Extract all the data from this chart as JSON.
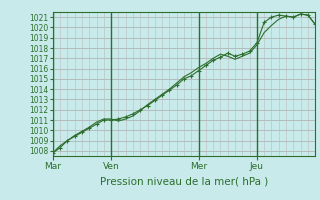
{
  "title": "",
  "xlabel": "Pression niveau de la mer( hPa )",
  "ylabel": "",
  "bg_color": "#c8eaea",
  "plot_bg_color": "#c8eaea",
  "line_color": "#2d6e2d",
  "grid_color": "#aaaaaa",
  "minor_grid_color": "#bbbbbb",
  "day_line_color": "#2d6e2d",
  "ylim": [
    1007.5,
    1021.5
  ],
  "yticks": [
    1008,
    1009,
    1010,
    1011,
    1012,
    1013,
    1014,
    1015,
    1016,
    1017,
    1018,
    1019,
    1020,
    1021
  ],
  "day_labels": [
    "Mar",
    "Ven",
    "Mer",
    "Jeu"
  ],
  "day_positions": [
    0,
    48,
    120,
    168
  ],
  "total_hours": 216,
  "line1_x": [
    0,
    6,
    12,
    18,
    24,
    30,
    36,
    42,
    48,
    54,
    60,
    66,
    72,
    78,
    84,
    90,
    96,
    102,
    108,
    114,
    120,
    126,
    132,
    138,
    144,
    150,
    156,
    162,
    168,
    174,
    180,
    186,
    192,
    198,
    204,
    210,
    216
  ],
  "line1_y": [
    1007.8,
    1008.3,
    1009.0,
    1009.4,
    1009.8,
    1010.2,
    1010.6,
    1011.0,
    1011.0,
    1011.1,
    1011.3,
    1011.6,
    1012.0,
    1012.4,
    1012.9,
    1013.4,
    1013.9,
    1014.4,
    1015.0,
    1015.3,
    1015.8,
    1016.3,
    1016.8,
    1017.1,
    1017.5,
    1017.2,
    1017.4,
    1017.7,
    1018.5,
    1020.5,
    1021.0,
    1021.2,
    1021.1,
    1021.0,
    1021.3,
    1021.2,
    1020.3
  ],
  "line2_x": [
    0,
    6,
    12,
    18,
    24,
    30,
    36,
    42,
    48,
    54,
    60,
    66,
    72,
    78,
    84,
    90,
    96,
    102,
    108,
    114,
    120,
    126,
    132,
    138,
    144,
    150,
    156,
    162,
    168,
    174,
    180,
    186,
    192,
    198,
    204,
    210,
    216
  ],
  "line2_y": [
    1007.8,
    1008.5,
    1009.0,
    1009.5,
    1009.9,
    1010.3,
    1010.8,
    1011.1,
    1011.1,
    1010.9,
    1011.1,
    1011.4,
    1011.9,
    1012.5,
    1013.0,
    1013.5,
    1014.0,
    1014.6,
    1015.2,
    1015.6,
    1016.1,
    1016.5,
    1017.0,
    1017.4,
    1017.2,
    1016.9,
    1017.2,
    1017.5,
    1018.3,
    1019.5,
    1020.2,
    1020.8,
    1021.1,
    1021.0,
    1021.3,
    1021.2,
    1020.3
  ]
}
